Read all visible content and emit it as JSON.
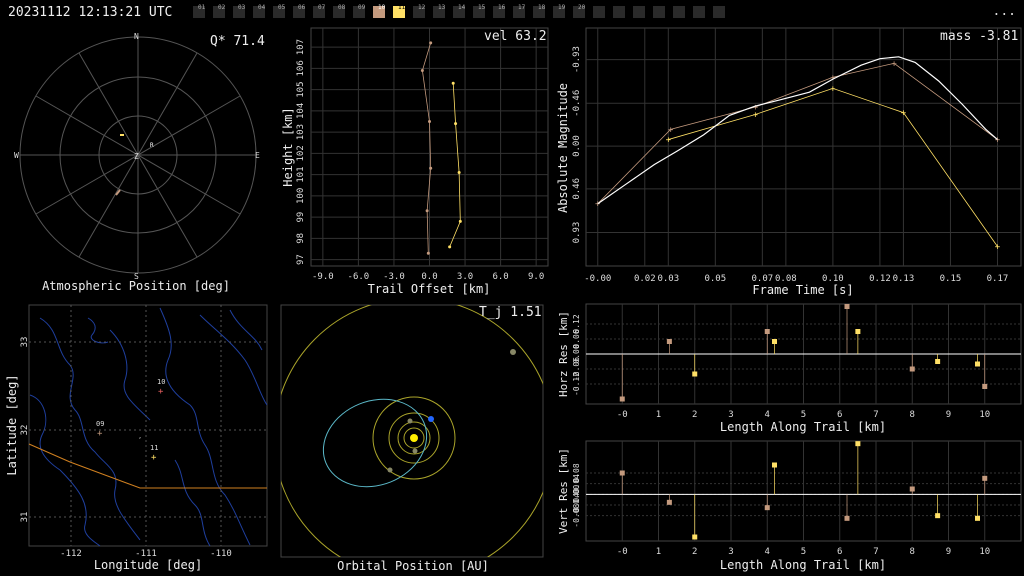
{
  "header": {
    "timestamp": "20231112 12:13:21 UTC",
    "menu": "..."
  },
  "cameras": {
    "labels": [
      "01",
      "02",
      "03",
      "04",
      "05",
      "06",
      "07",
      "08",
      "09",
      "10",
      "11",
      "12",
      "13",
      "14",
      "15",
      "16",
      "17",
      "18",
      "19",
      "20"
    ],
    "active": [
      "10",
      "11"
    ],
    "highlight": "11",
    "empty_after": 7
  },
  "colors": {
    "trail_a": "#ffe066",
    "trail_b": "#c49a7e",
    "fit": "#ffffff",
    "grid": "#444444",
    "map_river": "#2244aa",
    "map_road": "#d08020",
    "orbit_earth": "#2266ff",
    "sun": "#ffee00"
  },
  "panels": {
    "sky": {
      "value_label": "Q* 71.4",
      "title": "Atmospheric Position [deg]",
      "dirs": {
        "n": "N",
        "s": "S",
        "e": "E",
        "w": "W",
        "z": "Z"
      },
      "marker": "R"
    },
    "profile": {
      "value_label": "vel 63.2",
      "xlabel": "Trail Offset [km]",
      "ylabel": "Height [km]"
    },
    "lightcurve": {
      "value_label": "mass -3.81",
      "xlabel": "Frame Time [s]",
      "ylabel": "Absolute Magnitude"
    },
    "map": {
      "xlabel": "Longitude [deg]",
      "ylabel": "Latitude [deg]",
      "markers": [
        "10",
        "09",
        "11"
      ]
    },
    "orbit": {
      "value_label": "T_j 1.51",
      "title": "Orbital Position [AU]"
    },
    "horz": {
      "xlabel": "Length Along Trail [km]",
      "ylabel": "Horz Res [km]"
    },
    "vert": {
      "xlabel": "Length Along Trail [km]",
      "ylabel": "Vert Res [km]"
    }
  },
  "chart_data": [
    {
      "type": "scatter",
      "xlabel": "Trail Offset [km]",
      "ylabel": "Height [km]",
      "xlim": [
        -10,
        10
      ],
      "ylim": [
        96.7,
        107.9
      ],
      "xticks": [
        "-9.0",
        "-6.0",
        "-3.0",
        "0.0",
        "3.0",
        "6.0",
        "9.0"
      ],
      "yticks": [
        "97",
        "98",
        "99",
        "100",
        "101",
        "102",
        "103",
        "104",
        "105",
        "106",
        "107"
      ],
      "series": [
        {
          "color": "#c49a7e",
          "points": [
            [
              0.1,
              107.2
            ],
            [
              -0.6,
              105.9
            ],
            [
              0.0,
              103.5
            ],
            [
              0.1,
              101.3
            ],
            [
              -0.2,
              99.3
            ],
            [
              -0.1,
              97.3
            ]
          ]
        },
        {
          "color": "#ffe066",
          "points": [
            [
              2.0,
              105.3
            ],
            [
              2.2,
              103.4
            ],
            [
              2.5,
              101.1
            ],
            [
              2.6,
              98.8
            ],
            [
              1.7,
              97.6
            ]
          ]
        }
      ]
    },
    {
      "type": "line",
      "xlabel": "Frame Time [s]",
      "ylabel": "Absolute Magnitude",
      "xlim": [
        -0.005,
        0.18
      ],
      "ylim": [
        1.29,
        -1.27
      ],
      "xticks": [
        "-0.00",
        "0.02",
        "0.03",
        "0.05",
        "0.07",
        "0.08",
        "0.10",
        "0.12",
        "0.13",
        "0.15",
        "0.17"
      ],
      "yticks": [
        "-0.93",
        "-0.46",
        "0.00",
        "0.46",
        "0.93"
      ],
      "series": [
        {
          "color": "#ffe066",
          "points": [
            [
              0.03,
              -0.07
            ],
            [
              0.067,
              -0.34
            ],
            [
              0.1,
              -0.62
            ],
            [
              0.13,
              -0.36
            ],
            [
              0.17,
              1.08
            ]
          ]
        },
        {
          "color": "#c49a7e",
          "points": [
            [
              0.0,
              0.62
            ],
            [
              0.031,
              -0.18
            ],
            [
              0.067,
              -0.42
            ],
            [
              0.1,
              -0.74
            ],
            [
              0.126,
              -0.89
            ],
            [
              0.17,
              -0.07
            ]
          ]
        },
        {
          "color": "#ffffff",
          "points": [
            [
              0.0,
              0.62
            ],
            [
              0.012,
              0.41
            ],
            [
              0.024,
              0.2
            ],
            [
              0.034,
              0.05
            ],
            [
              0.045,
              -0.12
            ],
            [
              0.056,
              -0.33
            ],
            [
              0.067,
              -0.43
            ],
            [
              0.078,
              -0.5
            ],
            [
              0.09,
              -0.58
            ],
            [
              0.1,
              -0.72
            ],
            [
              0.112,
              -0.87
            ],
            [
              0.12,
              -0.94
            ],
            [
              0.128,
              -0.96
            ],
            [
              0.135,
              -0.9
            ],
            [
              0.145,
              -0.7
            ],
            [
              0.155,
              -0.45
            ],
            [
              0.165,
              -0.18
            ],
            [
              0.17,
              -0.07
            ]
          ]
        }
      ]
    },
    {
      "type": "bar",
      "xlabel": "Length Along Trail [km]",
      "ylabel": "Horz Res [km]",
      "xlim": [
        -1,
        11
      ],
      "ylim": [
        -0.2,
        0.2
      ],
      "xticks": [
        "-0",
        "1",
        "2",
        "3",
        "4",
        "5",
        "6",
        "7",
        "8",
        "9",
        "10"
      ],
      "yticks": [
        "0.12",
        "0.06",
        "0.00",
        "-0.06",
        "-0.12"
      ],
      "series": [
        {
          "color": "#c49a7e",
          "points": [
            [
              0.0,
              -0.18
            ],
            [
              1.3,
              0.05
            ],
            [
              4.0,
              0.09
            ],
            [
              6.2,
              0.19
            ],
            [
              8.0,
              -0.06
            ],
            [
              10.0,
              -0.13
            ]
          ]
        },
        {
          "color": "#ffe066",
          "points": [
            [
              2.0,
              -0.08
            ],
            [
              4.2,
              0.05
            ],
            [
              6.5,
              0.09
            ],
            [
              8.7,
              -0.03
            ],
            [
              9.8,
              -0.04
            ]
          ]
        }
      ]
    },
    {
      "type": "bar",
      "xlabel": "Length Along Trail [km]",
      "ylabel": "Vert Res [km]",
      "xlim": [
        -1,
        11
      ],
      "ylim": [
        -0.175,
        0.2
      ],
      "xticks": [
        "-0",
        "1",
        "2",
        "3",
        "4",
        "5",
        "6",
        "7",
        "8",
        "9",
        "10"
      ],
      "yticks": [
        "0.08",
        "0.04",
        "0.00",
        "-0.04",
        "-0.08"
      ],
      "series": [
        {
          "color": "#c49a7e",
          "points": [
            [
              0.0,
              0.08
            ],
            [
              1.3,
              -0.03
            ],
            [
              4.0,
              -0.05
            ],
            [
              6.2,
              -0.09
            ],
            [
              8.0,
              0.02
            ],
            [
              10.0,
              0.06
            ]
          ]
        },
        {
          "color": "#ffe066",
          "points": [
            [
              2.0,
              -0.16
            ],
            [
              4.2,
              0.11
            ],
            [
              6.5,
              0.19
            ],
            [
              8.7,
              -0.08
            ],
            [
              9.8,
              -0.09
            ]
          ]
        }
      ]
    }
  ]
}
